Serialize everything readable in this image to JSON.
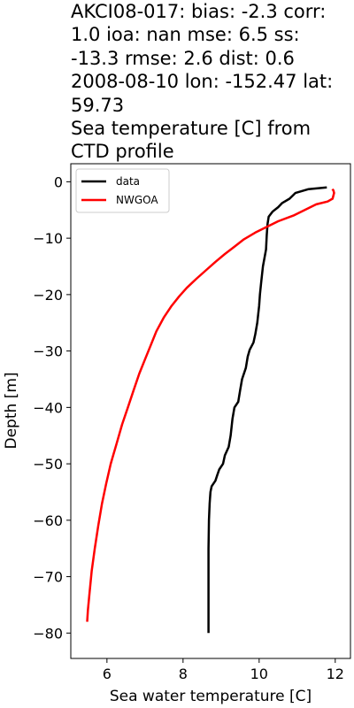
{
  "chart_data": {
    "type": "line",
    "title_lines": [
      "AKCI08-017: bias: -2.3  corr:",
      "1.0  ioa: nan  mse: 6.5  ss:",
      "-13.3  rmse: 2.6  dist: 0.6",
      "2008-08-10 lon: -152.47 lat:",
      "59.73",
      "Sea temperature [C] from",
      "CTD profile"
    ],
    "xlabel": "Sea water temperature [C]",
    "ylabel": "Depth [m]",
    "xlim": [
      5.05,
      12.4
    ],
    "ylim": [
      -84.5,
      3.2
    ],
    "xticks": [
      6,
      8,
      10,
      12
    ],
    "xtick_labels": [
      "6",
      "8",
      "10",
      "12"
    ],
    "yticks": [
      0,
      -10,
      -20,
      -30,
      -40,
      -50,
      -60,
      -70,
      -80
    ],
    "ytick_labels": [
      "0",
      "−10",
      "−20",
      "−30",
      "−40",
      "−50",
      "−60",
      "−70",
      "−80"
    ],
    "grid": false,
    "legend": {
      "position": "top-left"
    },
    "series": [
      {
        "name": "data",
        "color": "#000000",
        "points": [
          [
            11.78,
            -1.0
          ],
          [
            11.3,
            -1.3
          ],
          [
            10.95,
            -2.0
          ],
          [
            10.8,
            -3.0
          ],
          [
            10.6,
            -3.8
          ],
          [
            10.5,
            -4.5
          ],
          [
            10.35,
            -5.3
          ],
          [
            10.25,
            -6.2
          ],
          [
            10.22,
            -7.5
          ],
          [
            10.2,
            -9.5
          ],
          [
            10.18,
            -12.0
          ],
          [
            10.1,
            -15.0
          ],
          [
            10.05,
            -18.0
          ],
          [
            10.02,
            -20.0
          ],
          [
            10.0,
            -22.0
          ],
          [
            9.95,
            -25.0
          ],
          [
            9.9,
            -27.0
          ],
          [
            9.85,
            -28.5
          ],
          [
            9.75,
            -29.8
          ],
          [
            9.7,
            -31.0
          ],
          [
            9.65,
            -33.0
          ],
          [
            9.55,
            -35.0
          ],
          [
            9.5,
            -37.0
          ],
          [
            9.45,
            -39.0
          ],
          [
            9.35,
            -40.0
          ],
          [
            9.3,
            -42.0
          ],
          [
            9.25,
            -45.0
          ],
          [
            9.2,
            -47.0
          ],
          [
            9.1,
            -48.5
          ],
          [
            9.05,
            -50.0
          ],
          [
            8.95,
            -51.0
          ],
          [
            8.9,
            -52.0
          ],
          [
            8.85,
            -53.0
          ],
          [
            8.75,
            -54.0
          ],
          [
            8.72,
            -55.0
          ],
          [
            8.7,
            -57.0
          ],
          [
            8.68,
            -60.0
          ],
          [
            8.67,
            -65.0
          ],
          [
            8.67,
            -70.0
          ],
          [
            8.67,
            -75.0
          ],
          [
            8.67,
            -80.0
          ]
        ]
      },
      {
        "name": "NWGOA",
        "color": "#ff0000",
        "points": [
          [
            11.92,
            -1.3
          ],
          [
            11.95,
            -1.5
          ],
          [
            11.97,
            -2.0
          ],
          [
            11.93,
            -3.0
          ],
          [
            11.8,
            -3.5
          ],
          [
            11.5,
            -4.0
          ],
          [
            11.2,
            -5.0
          ],
          [
            10.9,
            -6.0
          ],
          [
            10.5,
            -7.0
          ],
          [
            10.2,
            -8.0
          ],
          [
            9.9,
            -9.0
          ],
          [
            9.6,
            -10.2
          ],
          [
            9.35,
            -11.5
          ],
          [
            9.1,
            -12.8
          ],
          [
            8.85,
            -14.2
          ],
          [
            8.6,
            -15.7
          ],
          [
            8.35,
            -17.2
          ],
          [
            8.1,
            -18.8
          ],
          [
            7.9,
            -20.3
          ],
          [
            7.7,
            -22.0
          ],
          [
            7.5,
            -24.0
          ],
          [
            7.3,
            -26.5
          ],
          [
            7.15,
            -29.0
          ],
          [
            7.0,
            -31.5
          ],
          [
            6.85,
            -34.0
          ],
          [
            6.7,
            -37.0
          ],
          [
            6.55,
            -40.0
          ],
          [
            6.4,
            -43.0
          ],
          [
            6.25,
            -46.5
          ],
          [
            6.1,
            -50.0
          ],
          [
            5.98,
            -53.5
          ],
          [
            5.87,
            -57.0
          ],
          [
            5.77,
            -61.0
          ],
          [
            5.68,
            -65.0
          ],
          [
            5.6,
            -69.0
          ],
          [
            5.54,
            -73.0
          ],
          [
            5.5,
            -76.0
          ],
          [
            5.48,
            -78.0
          ]
        ]
      }
    ]
  }
}
